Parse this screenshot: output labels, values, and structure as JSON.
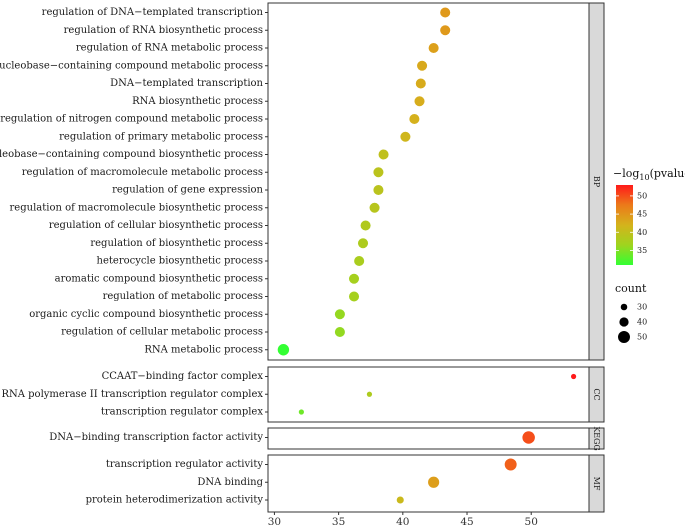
{
  "chart_data": {
    "type": "scatter",
    "title": "",
    "xlabel": "",
    "ylabel": "",
    "xlim": [
      29.5,
      54.5
    ],
    "xticks": [
      30,
      35,
      40,
      45,
      50
    ],
    "xtick_labels": [
      "30",
      "35",
      "40",
      "45",
      "50"
    ],
    "grid": false,
    "facets": [
      {
        "label": "BP",
        "points": [
          {
            "term": "regulation of DNA−templated transcription",
            "x": 43.3,
            "pvalue_log": 44.5,
            "count": 43
          },
          {
            "term": "regulation of RNA biosynthetic process",
            "x": 43.3,
            "pvalue_log": 44.5,
            "count": 43
          },
          {
            "term": "regulation of RNA metabolic process",
            "x": 42.4,
            "pvalue_log": 43.8,
            "count": 43
          },
          {
            "term": "regulation of nucleobase−containing compound metabolic process",
            "x": 41.5,
            "pvalue_log": 43.0,
            "count": 43
          },
          {
            "term": "DNA−templated transcription",
            "x": 41.4,
            "pvalue_log": 42.8,
            "count": 43
          },
          {
            "term": "RNA biosynthetic process",
            "x": 41.3,
            "pvalue_log": 42.6,
            "count": 43
          },
          {
            "term": "regulation of nitrogen compound metabolic process",
            "x": 40.9,
            "pvalue_log": 42.2,
            "count": 43
          },
          {
            "term": "regulation of primary metabolic process",
            "x": 40.2,
            "pvalue_log": 41.5,
            "count": 43
          },
          {
            "term": "nucleobase−containing compound biosynthetic process",
            "x": 38.5,
            "pvalue_log": 39.8,
            "count": 43
          },
          {
            "term": "regulation of macromolecule metabolic process",
            "x": 38.1,
            "pvalue_log": 39.4,
            "count": 43
          },
          {
            "term": "regulation of gene expression",
            "x": 38.1,
            "pvalue_log": 39.3,
            "count": 43
          },
          {
            "term": "regulation of macromolecule biosynthetic process",
            "x": 37.8,
            "pvalue_log": 39.0,
            "count": 43
          },
          {
            "term": "regulation of cellular biosynthetic process",
            "x": 37.1,
            "pvalue_log": 38.3,
            "count": 43
          },
          {
            "term": "regulation of biosynthetic process",
            "x": 36.9,
            "pvalue_log": 38.0,
            "count": 43
          },
          {
            "term": "heterocycle biosynthetic process",
            "x": 36.6,
            "pvalue_log": 37.6,
            "count": 43
          },
          {
            "term": "aromatic compound biosynthetic process",
            "x": 36.2,
            "pvalue_log": 37.2,
            "count": 43
          },
          {
            "term": "regulation of metabolic process",
            "x": 36.2,
            "pvalue_log": 37.1,
            "count": 43
          },
          {
            "term": "organic cyclic compound biosynthetic process",
            "x": 35.1,
            "pvalue_log": 36.0,
            "count": 43
          },
          {
            "term": "regulation of cellular metabolic process",
            "x": 35.1,
            "pvalue_log": 35.9,
            "count": 43
          },
          {
            "term": "RNA metabolic process",
            "x": 30.7,
            "pvalue_log": 31.0,
            "count": 48
          }
        ]
      },
      {
        "label": "CC",
        "points": [
          {
            "term": "CCAAT−binding factor complex",
            "x": 53.3,
            "pvalue_log": 53.0,
            "count": 25
          },
          {
            "term": "RNA polymerase II transcription regulator complex",
            "x": 37.4,
            "pvalue_log": 38.0,
            "count": 25
          },
          {
            "term": "transcription regulator complex",
            "x": 32.1,
            "pvalue_log": 34.0,
            "count": 25
          }
        ]
      },
      {
        "label": "KEGG",
        "points": [
          {
            "term": "DNA−binding transcription factor activity",
            "x": 49.8,
            "pvalue_log": 50.0,
            "count": 52
          }
        ]
      },
      {
        "label": "MF",
        "points": [
          {
            "term": "transcription regulator activity",
            "x": 48.4,
            "pvalue_log": 49.0,
            "count": 50
          },
          {
            "term": "DNA binding",
            "x": 42.4,
            "pvalue_log": 44.0,
            "count": 47
          },
          {
            "term": "protein heterodimerization activity",
            "x": 39.8,
            "pvalue_log": 41.0,
            "count": 32
          }
        ]
      }
    ],
    "legend_color": {
      "title_main": "−log",
      "title_sub": "10",
      "title_tail": "(pvalue)",
      "range": [
        31,
        53
      ],
      "ticks": [
        35,
        40,
        45,
        50
      ],
      "tick_labels": [
        "35",
        "40",
        "45",
        "50"
      ],
      "gradient": [
        "#33ff33",
        "#9fd41e",
        "#d4b31c",
        "#ec7a1a",
        "#ff1a1a"
      ]
    },
    "legend_size": {
      "title": "count",
      "values": [
        30,
        40,
        50
      ],
      "labels": [
        "30",
        "40",
        "50"
      ]
    }
  }
}
